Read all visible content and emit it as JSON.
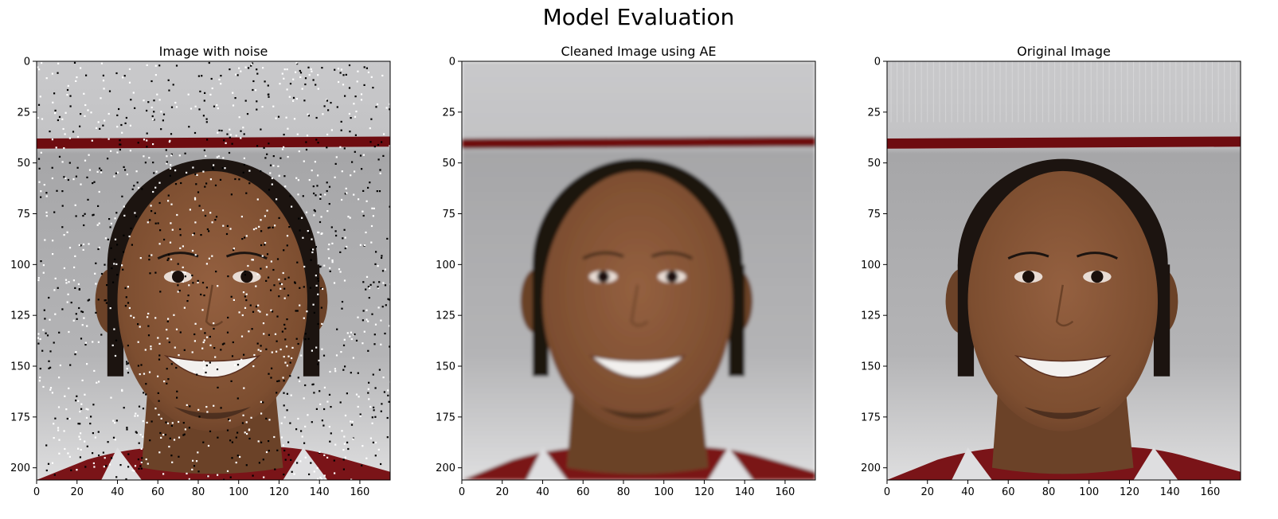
{
  "figure": {
    "title": "Model Evaluation"
  },
  "colors": {
    "background_light": "#c8c8ca",
    "background_mid": "#a9a9ab",
    "background_low": "#dcdcde",
    "stripe": "#6e0c10",
    "skin": "#8a5838",
    "skin_dark": "#6b4228",
    "hair": "#1c1410",
    "teeth": "#f2f0ee",
    "jersey": "#7a1418",
    "collar": "#dedee0"
  },
  "chart_data": [
    {
      "type": "image",
      "title": "Image with noise",
      "content": "noisy-face",
      "xlim": [
        0,
        175
      ],
      "ylim": [
        206,
        0
      ],
      "xticks": [
        0,
        20,
        40,
        60,
        80,
        100,
        120,
        140,
        160
      ],
      "yticks": [
        0,
        25,
        50,
        75,
        100,
        125,
        150,
        175,
        200
      ]
    },
    {
      "type": "image",
      "title": "Cleaned Image using AE",
      "content": "cleaned-face",
      "xlim": [
        0,
        175
      ],
      "ylim": [
        206,
        0
      ],
      "xticks": [
        0,
        20,
        40,
        60,
        80,
        100,
        120,
        140,
        160
      ],
      "yticks": [
        0,
        25,
        50,
        75,
        100,
        125,
        150,
        175,
        200
      ]
    },
    {
      "type": "image",
      "title": "Original Image",
      "content": "original-face",
      "xlim": [
        0,
        175
      ],
      "ylim": [
        206,
        0
      ],
      "xticks": [
        0,
        20,
        40,
        60,
        80,
        100,
        120,
        140,
        160
      ],
      "yticks": [
        0,
        25,
        50,
        75,
        100,
        125,
        150,
        175,
        200
      ]
    }
  ]
}
